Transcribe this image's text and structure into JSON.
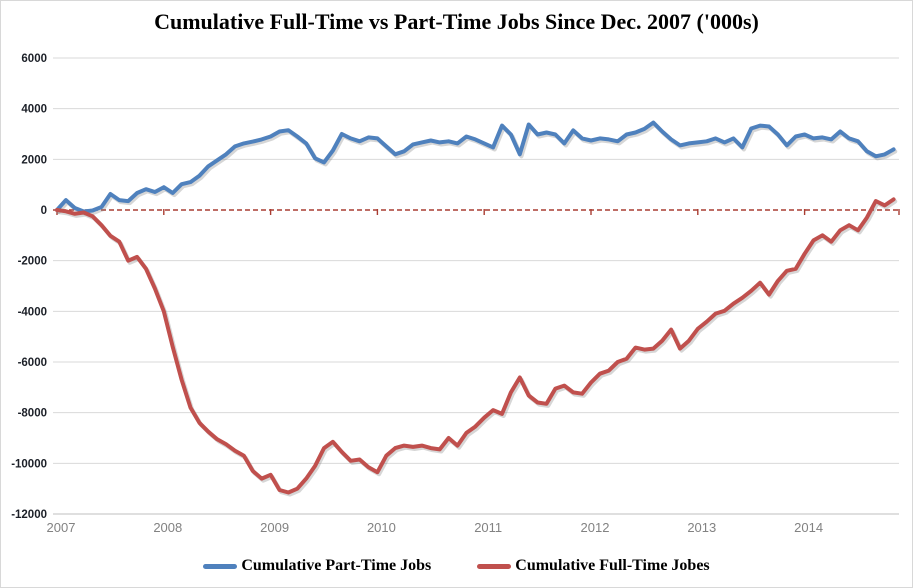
{
  "title": "Cumulative Full-Time vs Part-Time Jobs Since Dec. 2007 ('000s)",
  "chart_data": {
    "type": "line",
    "title": "Cumulative Full-Time vs Part-Time Jobs Since Dec. 2007 ('000s)",
    "xlabel": "",
    "ylabel": "",
    "units": "thousands of jobs",
    "grid": "horizontal",
    "legend_position": "bottom",
    "ylim": [
      -12000,
      6000
    ],
    "ytick_step": 2000,
    "yticks": [
      6000,
      4000,
      2000,
      0,
      -2000,
      -4000,
      -6000,
      -8000,
      -10000,
      -12000
    ],
    "xtick_labels": [
      "2007",
      "2008",
      "2009",
      "2010",
      "2011",
      "2012",
      "2013",
      "2014"
    ],
    "xtick_indices": [
      0,
      12,
      24,
      36,
      48,
      60,
      72,
      84
    ],
    "zero_line": {
      "value": 0,
      "color": "#a93d32",
      "style": "dashed"
    },
    "months": [
      "2007-12",
      "2008-01",
      "2008-02",
      "2008-03",
      "2008-04",
      "2008-05",
      "2008-06",
      "2008-07",
      "2008-08",
      "2008-09",
      "2008-10",
      "2008-11",
      "2008-12",
      "2009-01",
      "2009-02",
      "2009-03",
      "2009-04",
      "2009-05",
      "2009-06",
      "2009-07",
      "2009-08",
      "2009-09",
      "2009-10",
      "2009-11",
      "2009-12",
      "2010-01",
      "2010-02",
      "2010-03",
      "2010-04",
      "2010-05",
      "2010-06",
      "2010-07",
      "2010-08",
      "2010-09",
      "2010-10",
      "2010-11",
      "2010-12",
      "2011-01",
      "2011-02",
      "2011-03",
      "2011-04",
      "2011-05",
      "2011-06",
      "2011-07",
      "2011-08",
      "2011-09",
      "2011-10",
      "2011-11",
      "2011-12",
      "2012-01",
      "2012-02",
      "2012-03",
      "2012-04",
      "2012-05",
      "2012-06",
      "2012-07",
      "2012-08",
      "2012-09",
      "2012-10",
      "2012-11",
      "2012-12",
      "2013-01",
      "2013-02",
      "2013-03",
      "2013-04",
      "2013-05",
      "2013-06",
      "2013-07",
      "2013-08",
      "2013-09",
      "2013-10",
      "2013-11",
      "2013-12",
      "2014-01",
      "2014-02",
      "2014-03",
      "2014-04",
      "2014-05",
      "2014-06",
      "2014-07",
      "2014-08",
      "2014-09",
      "2014-10",
      "2014-11",
      "2014-12",
      "2015-01",
      "2015-02",
      "2015-03",
      "2015-04",
      "2015-05",
      "2015-06",
      "2015-07",
      "2015-08",
      "2015-09",
      "2015-10"
    ],
    "series": [
      {
        "name": "Cumulative Part-Time Jobs",
        "color": "#4f81bd",
        "values": [
          0,
          390,
          80,
          -60,
          -20,
          120,
          630,
          390,
          350,
          670,
          820,
          710,
          900,
          670,
          1020,
          1100,
          1350,
          1725,
          1960,
          2200,
          2510,
          2630,
          2700,
          2785,
          2900,
          3100,
          3150,
          2900,
          2630,
          2040,
          1880,
          2350,
          3000,
          2825,
          2710,
          2865,
          2825,
          2510,
          2200,
          2315,
          2590,
          2670,
          2745,
          2670,
          2710,
          2630,
          2900,
          2785,
          2630,
          2470,
          3330,
          2980,
          2200,
          3375,
          2980,
          3060,
          2980,
          2630,
          3140,
          2825,
          2745,
          2825,
          2785,
          2710,
          2980,
          3060,
          3200,
          3450,
          3100,
          2785,
          2550,
          2630,
          2670,
          2710,
          2825,
          2670,
          2825,
          2470,
          3215,
          3330,
          3295,
          2980,
          2550,
          2900,
          2980,
          2825,
          2865,
          2785,
          3100,
          2825,
          2710,
          2315,
          2120,
          2195,
          2390
        ]
      },
      {
        "name": "Cumulative Full-Time Jobes",
        "color": "#c0504d",
        "values": [
          0,
          -50,
          -150,
          -100,
          -250,
          -600,
          -1020,
          -1250,
          -2000,
          -1850,
          -2320,
          -3100,
          -4000,
          -5400,
          -6700,
          -7800,
          -8400,
          -8750,
          -9050,
          -9250,
          -9500,
          -9700,
          -10300,
          -10600,
          -10450,
          -11050,
          -11150,
          -11000,
          -10600,
          -10100,
          -9400,
          -9150,
          -9550,
          -9900,
          -9850,
          -10150,
          -10350,
          -9700,
          -9400,
          -9300,
          -9350,
          -9300,
          -9400,
          -9450,
          -9000,
          -9300,
          -8800,
          -8550,
          -8200,
          -7900,
          -8050,
          -7200,
          -6610,
          -7320,
          -7600,
          -7650,
          -7050,
          -6930,
          -7200,
          -7250,
          -6810,
          -6460,
          -6340,
          -6000,
          -5870,
          -5430,
          -5510,
          -5470,
          -5160,
          -4720,
          -5470,
          -5160,
          -4690,
          -4410,
          -4090,
          -3980,
          -3700,
          -3465,
          -3190,
          -2870,
          -3340,
          -2800,
          -2400,
          -2320,
          -1730,
          -1200,
          -1000,
          -1250,
          -800,
          -600,
          -800,
          -300,
          350,
          180,
          420
        ]
      }
    ]
  },
  "colors": {
    "grid": "#d9d9d9",
    "axis": "#bfbfbf",
    "x_label": "#828282",
    "y_label": "#1c2028",
    "part_time": "#4f81bd",
    "full_time": "#c0504d",
    "zero_dash": "#a93d32"
  }
}
